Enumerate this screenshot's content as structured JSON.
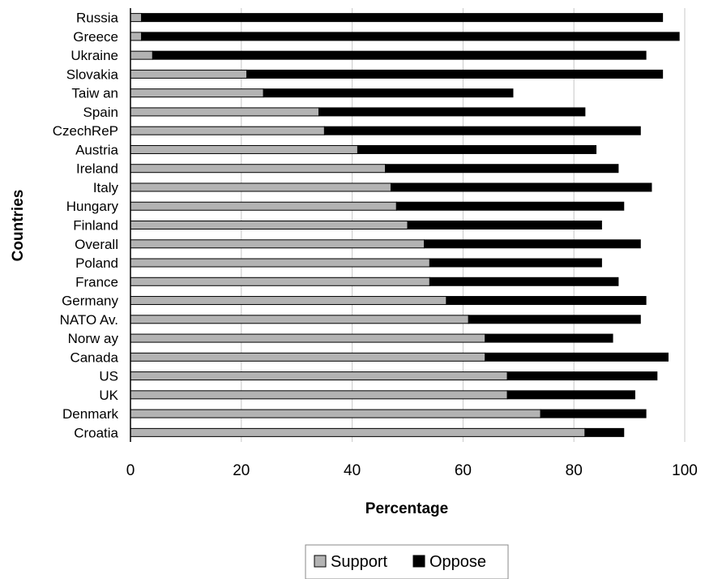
{
  "chart_data": {
    "type": "bar",
    "orientation": "horizontal",
    "stacked": true,
    "categories": [
      "Russia",
      "Greece",
      "Ukraine",
      "Slovakia",
      "Taiw an",
      "Spain",
      "CzechReP",
      "Austria",
      "Ireland",
      "Italy",
      "Hungary",
      "Finland",
      "Overall",
      "Poland",
      "France",
      "Germany",
      "NATO Av.",
      "Norw ay",
      "Canada",
      "US",
      "UK",
      "Denmark",
      "Croatia"
    ],
    "series": [
      {
        "name": "Support",
        "color": "#b3b3b3",
        "values": [
          2,
          2,
          4,
          21,
          24,
          34,
          35,
          41,
          46,
          47,
          48,
          50,
          53,
          54,
          54,
          57,
          61,
          64,
          64,
          68,
          68,
          74,
          82
        ]
      },
      {
        "name": "Oppose",
        "color": "#000000",
        "values": [
          94,
          97,
          89,
          75,
          45,
          48,
          57,
          43,
          42,
          47,
          41,
          35,
          39,
          31,
          34,
          36,
          31,
          23,
          33,
          27,
          23,
          19,
          7
        ]
      }
    ],
    "xlabel": "Percentage",
    "ylabel": "Countries",
    "xlim": [
      0,
      100
    ],
    "xticks": [
      0,
      20,
      40,
      60,
      80,
      100
    ],
    "grid": true,
    "legend_position": "bottom"
  }
}
